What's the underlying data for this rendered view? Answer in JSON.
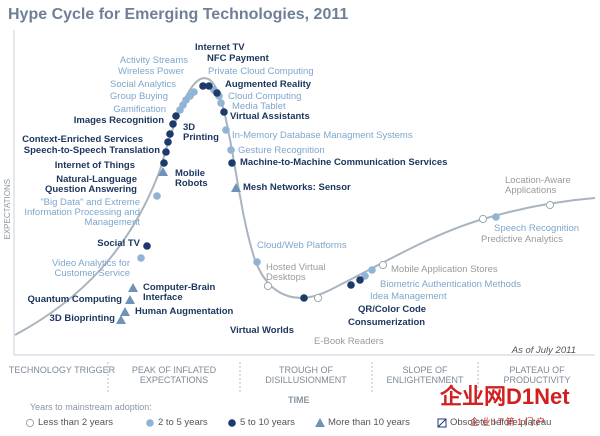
{
  "title": "Hype Cycle for Emerging Technologies, 2011",
  "y_axis_label": "EXPECTATIONS",
  "x_axis_label": "TIME",
  "date_note": "As of July 2011",
  "phases": [
    "TECHNOLOGY TRIGGER",
    "PEAK OF INFLATED EXPECTATIONS",
    "TROUGH OF DISILLUSIONMENT",
    "SLOPE OF ENLIGHTENMENT",
    "PLATEAU OF PRODUCTIVITY"
  ],
  "legend": {
    "title": "Years to mainstream adoption:",
    "groups": [
      {
        "label": "Less than 2 years",
        "items": [
          "Hosted Virtual Desktops",
          "E-Book Readers",
          "Mobile Application Stores",
          "Location-Aware Applications",
          "Predictive Analytics"
        ]
      },
      {
        "label": "2 to 5 years",
        "items": [
          "Activity Streams",
          "Wireless Power",
          "Social Analytics",
          "Group Buying",
          "Gamification",
          "Private Cloud Computing",
          "Cloud Computing",
          "Media Tablet",
          "In-Memory Database Managment Systems",
          "Gesture Recognition",
          "\"Big Data\" and Extreme Information Processing and Management",
          "Video Analytics for Customer Service",
          "Cloud/Web Platforms",
          "Biometric Authentication Methods",
          "Idea Management",
          "Speech Recognition"
        ]
      },
      {
        "label": "5 to 10 years",
        "items": [
          "Internet TV",
          "NFC Payment",
          "Augmented Reality",
          "Images Recognition",
          "3D Printing",
          "Virtual Assistants",
          "Context-Enriched Services",
          "Speech-to-Speech Translation",
          "Internet of Things",
          "Machine-to-Machine Communication Services",
          "Natural-Language Question Answering",
          "Social TV",
          "Virtual Worlds",
          "QR/Color Code",
          "Consumerization"
        ]
      },
      {
        "label": "More than 10 years",
        "items": [
          "Mobile Robots",
          "Mesh Networks: Sensor",
          "Computer-Brain Interface",
          "Quantum Computing",
          "Human Augmentation",
          "3D Bioprinting"
        ]
      },
      {
        "label": "Obsolete before plateau"
      }
    ]
  },
  "watermark": {
    "brand": "企业网D1Net",
    "tagline": "企 业 I T 第 1 门 户"
  }
}
